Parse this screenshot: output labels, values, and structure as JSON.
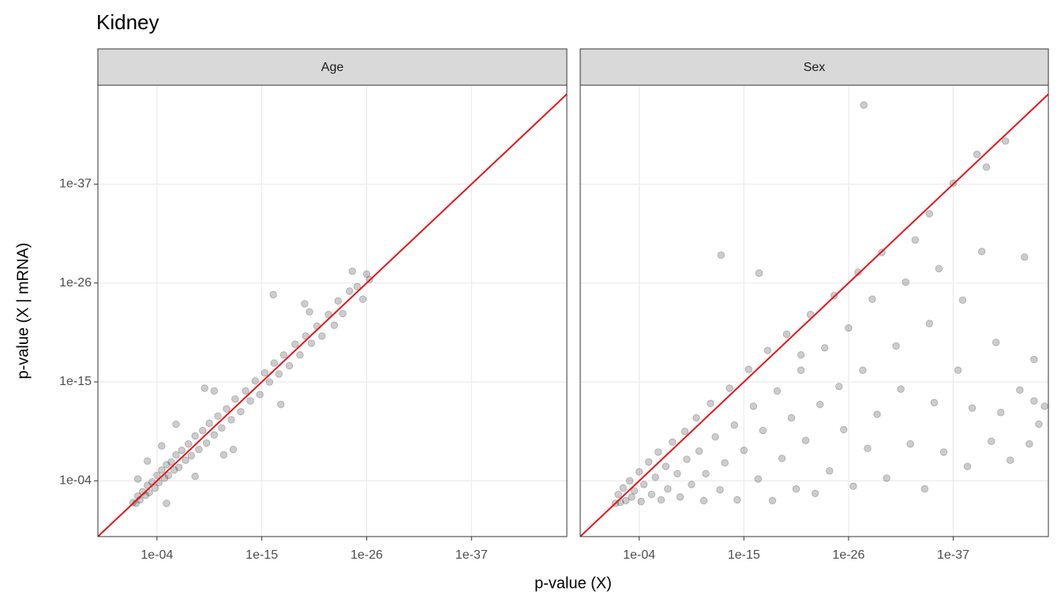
{
  "title": "Kidney",
  "x_label": "p-value (X)",
  "y_label": "p-value (X | mRNA)",
  "chart_data": [
    {
      "type": "scatter",
      "facet": "Age",
      "xscale": "log",
      "yscale": "log",
      "grid": true,
      "color": "#000000",
      "identity_line_color": "#e8131a",
      "xlim": [
        158,
        1e-47
      ],
      "ylim": [
        158,
        1e-48
      ],
      "xticks": [
        {
          "value": 0.0001,
          "label": "1e-04"
        },
        {
          "value": 1e-15,
          "label": "1e-15"
        },
        {
          "value": 1e-26,
          "label": "1e-26"
        },
        {
          "value": 1e-37,
          "label": "1e-37"
        }
      ],
      "yticks": [
        {
          "value": 0.0001,
          "label": "1e-04"
        },
        {
          "value": 1e-15,
          "label": "1e-15"
        },
        {
          "value": 1e-26,
          "label": "1e-26"
        },
        {
          "value": 1e-37,
          "label": "1e-37"
        }
      ],
      "x": [
        0.032,
        0.016,
        0.01,
        0.0063,
        0.0032,
        0.0016,
        0.001,
        0.00063,
        0.00032,
        0.00016,
        0.0001,
        6.3e-05,
        3.2e-05,
        1.6e-05,
        1e-05,
        6.3e-06,
        3.2e-06,
        1.6e-06,
        1e-06,
        5e-07,
        2.5e-07,
        1e-07,
        5e-08,
        2.5e-08,
        1e-08,
        4e-09,
        1.6e-09,
        6.3e-10,
        3.2e-10,
        1e-10,
        4e-11,
        1.6e-11,
        5e-12,
        1.6e-12,
        6.3e-13,
        1.6e-13,
        5e-14,
        1.6e-14,
        5e-15,
        1.6e-15,
        5e-16,
        1.6e-16,
        5e-17,
        1.6e-17,
        5e-18,
        1.3e-18,
        3.2e-19,
        1e-19,
        2.5e-20,
        6.3e-21,
        1.6e-21,
        5e-22,
        1e-22,
        2.5e-23,
        1e-23,
        3.2e-24,
        6.3e-25,
        1e-25,
        2.5e-26,
        1e-26,
        5e-27,
        6.3e-17,
        1e-09,
        1e-06,
        1e-12,
        1e-08,
        1e-20,
        1e-17,
        0.001,
        1e-05,
        0.01,
        1e-10,
        3.2e-25,
        3.2e-20,
        3.2e-05,
        1e-11
      ],
      "values": [
        0.025,
        0.032,
        0.005,
        0.013,
        0.0016,
        0.004,
        0.00032,
        0.002,
        0.00013,
        0.00063,
        2.5e-05,
        0.00016,
        6.3e-06,
        5e-05,
        1.6e-06,
        2.5e-05,
        7.9e-07,
        6.3e-06,
        1.3e-07,
        3.2e-06,
        4e-08,
        5e-07,
        7.9e-09,
        1.6e-07,
        1e-09,
        3.2e-08,
        2.5e-10,
        6.3e-09,
        4e-11,
        7.9e-10,
        6.3e-12,
        1.3e-10,
        1e-12,
        1.6e-11,
        7.9e-14,
        2e-12,
        1e-14,
        1.3e-13,
        7.9e-16,
        2.5e-14,
        1e-16,
        1e-15,
        7.9e-18,
        1.3e-16,
        1e-18,
        1.6e-17,
        6.3e-20,
        1e-18,
        7.9e-21,
        5e-20,
        6.3e-22,
        7.9e-21,
        3.2e-23,
        5e-22,
        1e-24,
        2.5e-23,
        7.9e-26,
        2.5e-26,
        6.3e-25,
        1e-27,
        4e-27,
        2e-25,
        5e-15,
        5e-11,
        3.2e-08,
        3.2e-05,
        1.6e-23,
        3.2e-13,
        6.3e-07,
        0.032,
        6.3e-05,
        1e-14,
        5e-28,
        2e-24,
        1.3e-08,
        1.3e-07
      ]
    },
    {
      "type": "scatter",
      "facet": "Sex",
      "xscale": "log",
      "yscale": "log",
      "grid": true,
      "color": "#000000",
      "identity_line_color": "#e8131a",
      "xlim": [
        158,
        1e-47
      ],
      "ylim": [
        158,
        1e-48
      ],
      "xticks": [
        {
          "value": 0.0001,
          "label": "1e-04"
        },
        {
          "value": 1e-15,
          "label": "1e-15"
        },
        {
          "value": 1e-26,
          "label": "1e-26"
        },
        {
          "value": 1e-37,
          "label": "1e-37"
        }
      ],
      "yticks": [
        {
          "value": 0.0001,
          "label": "1e-04"
        },
        {
          "value": 1e-15,
          "label": "1e-15"
        },
        {
          "value": 1e-26,
          "label": "1e-26"
        },
        {
          "value": 1e-37,
          "label": "1e-37"
        }
      ],
      "x": [
        0.032,
        0.016,
        0.01,
        0.005,
        0.0025,
        0.001,
        0.00063,
        0.00032,
        0.0001,
        6.3e-05,
        3.2e-05,
        1e-05,
        5e-06,
        2e-06,
        1e-06,
        5e-07,
        1.6e-07,
        1e-07,
        3.2e-08,
        1e-08,
        5e-09,
        1.6e-09,
        1e-09,
        3.2e-10,
        1e-10,
        5e-11,
        1.6e-11,
        1e-11,
        3.2e-12,
        1e-12,
        3.2e-13,
        1e-13,
        3.2e-14,
        1e-14,
        5e-15,
        1e-15,
        3.2e-16,
        1e-16,
        3.2e-17,
        1e-17,
        3.2e-18,
        1e-18,
        3.2e-19,
        1e-19,
        3.2e-20,
        1e-20,
        3.2e-21,
        1e-21,
        3.2e-22,
        1e-22,
        3.2e-23,
        1e-23,
        3.2e-24,
        1e-24,
        3.2e-25,
        1e-25,
        3.2e-26,
        1e-26,
        3.2e-27,
        1e-27,
        3.2e-28,
        1e-28,
        3.2e-29,
        1e-29,
        3.2e-30,
        1e-30,
        1e-31,
        3.2e-32,
        1e-32,
        3.2e-33,
        1e-33,
        1e-34,
        3.2e-35,
        1e-35,
        3.2e-36,
        1e-36,
        1e-37,
        3.2e-38,
        1e-38,
        3.2e-39,
        1e-39,
        3.2e-40,
        1e-40,
        3.2e-41,
        1e-41,
        3.2e-42,
        1e-42,
        3.2e-43,
        1e-43,
        1e-44,
        3.2e-45,
        1e-45,
        3.2e-46,
        1e-46,
        2.5e-47,
        2.5e-28,
        2.5e-13,
        2.5e-17,
        1e-21,
        3.2e-35,
        3.2e-46
      ],
      "values": [
        0.032,
        0.0032,
        0.025,
        0.00063,
        0.016,
        0.0001,
        0.0063,
        0.0013,
        1e-05,
        0.02,
        0.00025,
        7.9e-07,
        0.0032,
        4e-05,
        6.3e-08,
        0.013,
        2.5e-06,
        0.00079,
        5e-09,
        1.6e-05,
        0.0063,
        3.2e-10,
        4e-07,
        0.00025,
        1e-11,
        5e-08,
        0.016,
        1.6e-05,
        2.5e-13,
        1.3e-09,
        0.001,
        1e-06,
        5e-15,
        6.3e-11,
        0.013,
        4e-08,
        4e-17,
        5e-13,
        6.3e-05,
        2.5e-10,
        3.2e-19,
        0.016,
        1e-14,
        3.2e-07,
        5e-21,
        1e-11,
        0.00079,
        5e-17,
        3.2e-09,
        3.2e-23,
        0.0025,
        3.2e-13,
        1.6e-19,
        7.9e-06,
        2.5e-25,
        3.2e-15,
        2e-10,
        1e-21,
        0.0004,
        6.3e-28,
        5e-17,
        2.5e-08,
        6.3e-25,
        4e-12,
        4e-30,
        5e-05,
        1e-19,
        6.3e-15,
        7.9e-27,
        7.9e-09,
        1.6e-31,
        0.00079,
        3.2e-22,
        2e-13,
        2.5e-28,
        6.3e-08,
        7.9e-38,
        5e-17,
        7.9e-25,
        2.5e-06,
        7.9e-13,
        5e-41,
        3.2e-30,
        1.3e-39,
        4e-09,
        4e-20,
        2.5e-12,
        1.6e-42,
        5e-07,
        7.9e-15,
        1.3e-29,
        7.9e-09,
        3.2e-18,
        5e-11,
        5e-13,
        1.6e-46,
        7.9e-30,
        7.9e-28,
        1e-18,
        2e-34,
        1.3e-13
      ]
    }
  ]
}
